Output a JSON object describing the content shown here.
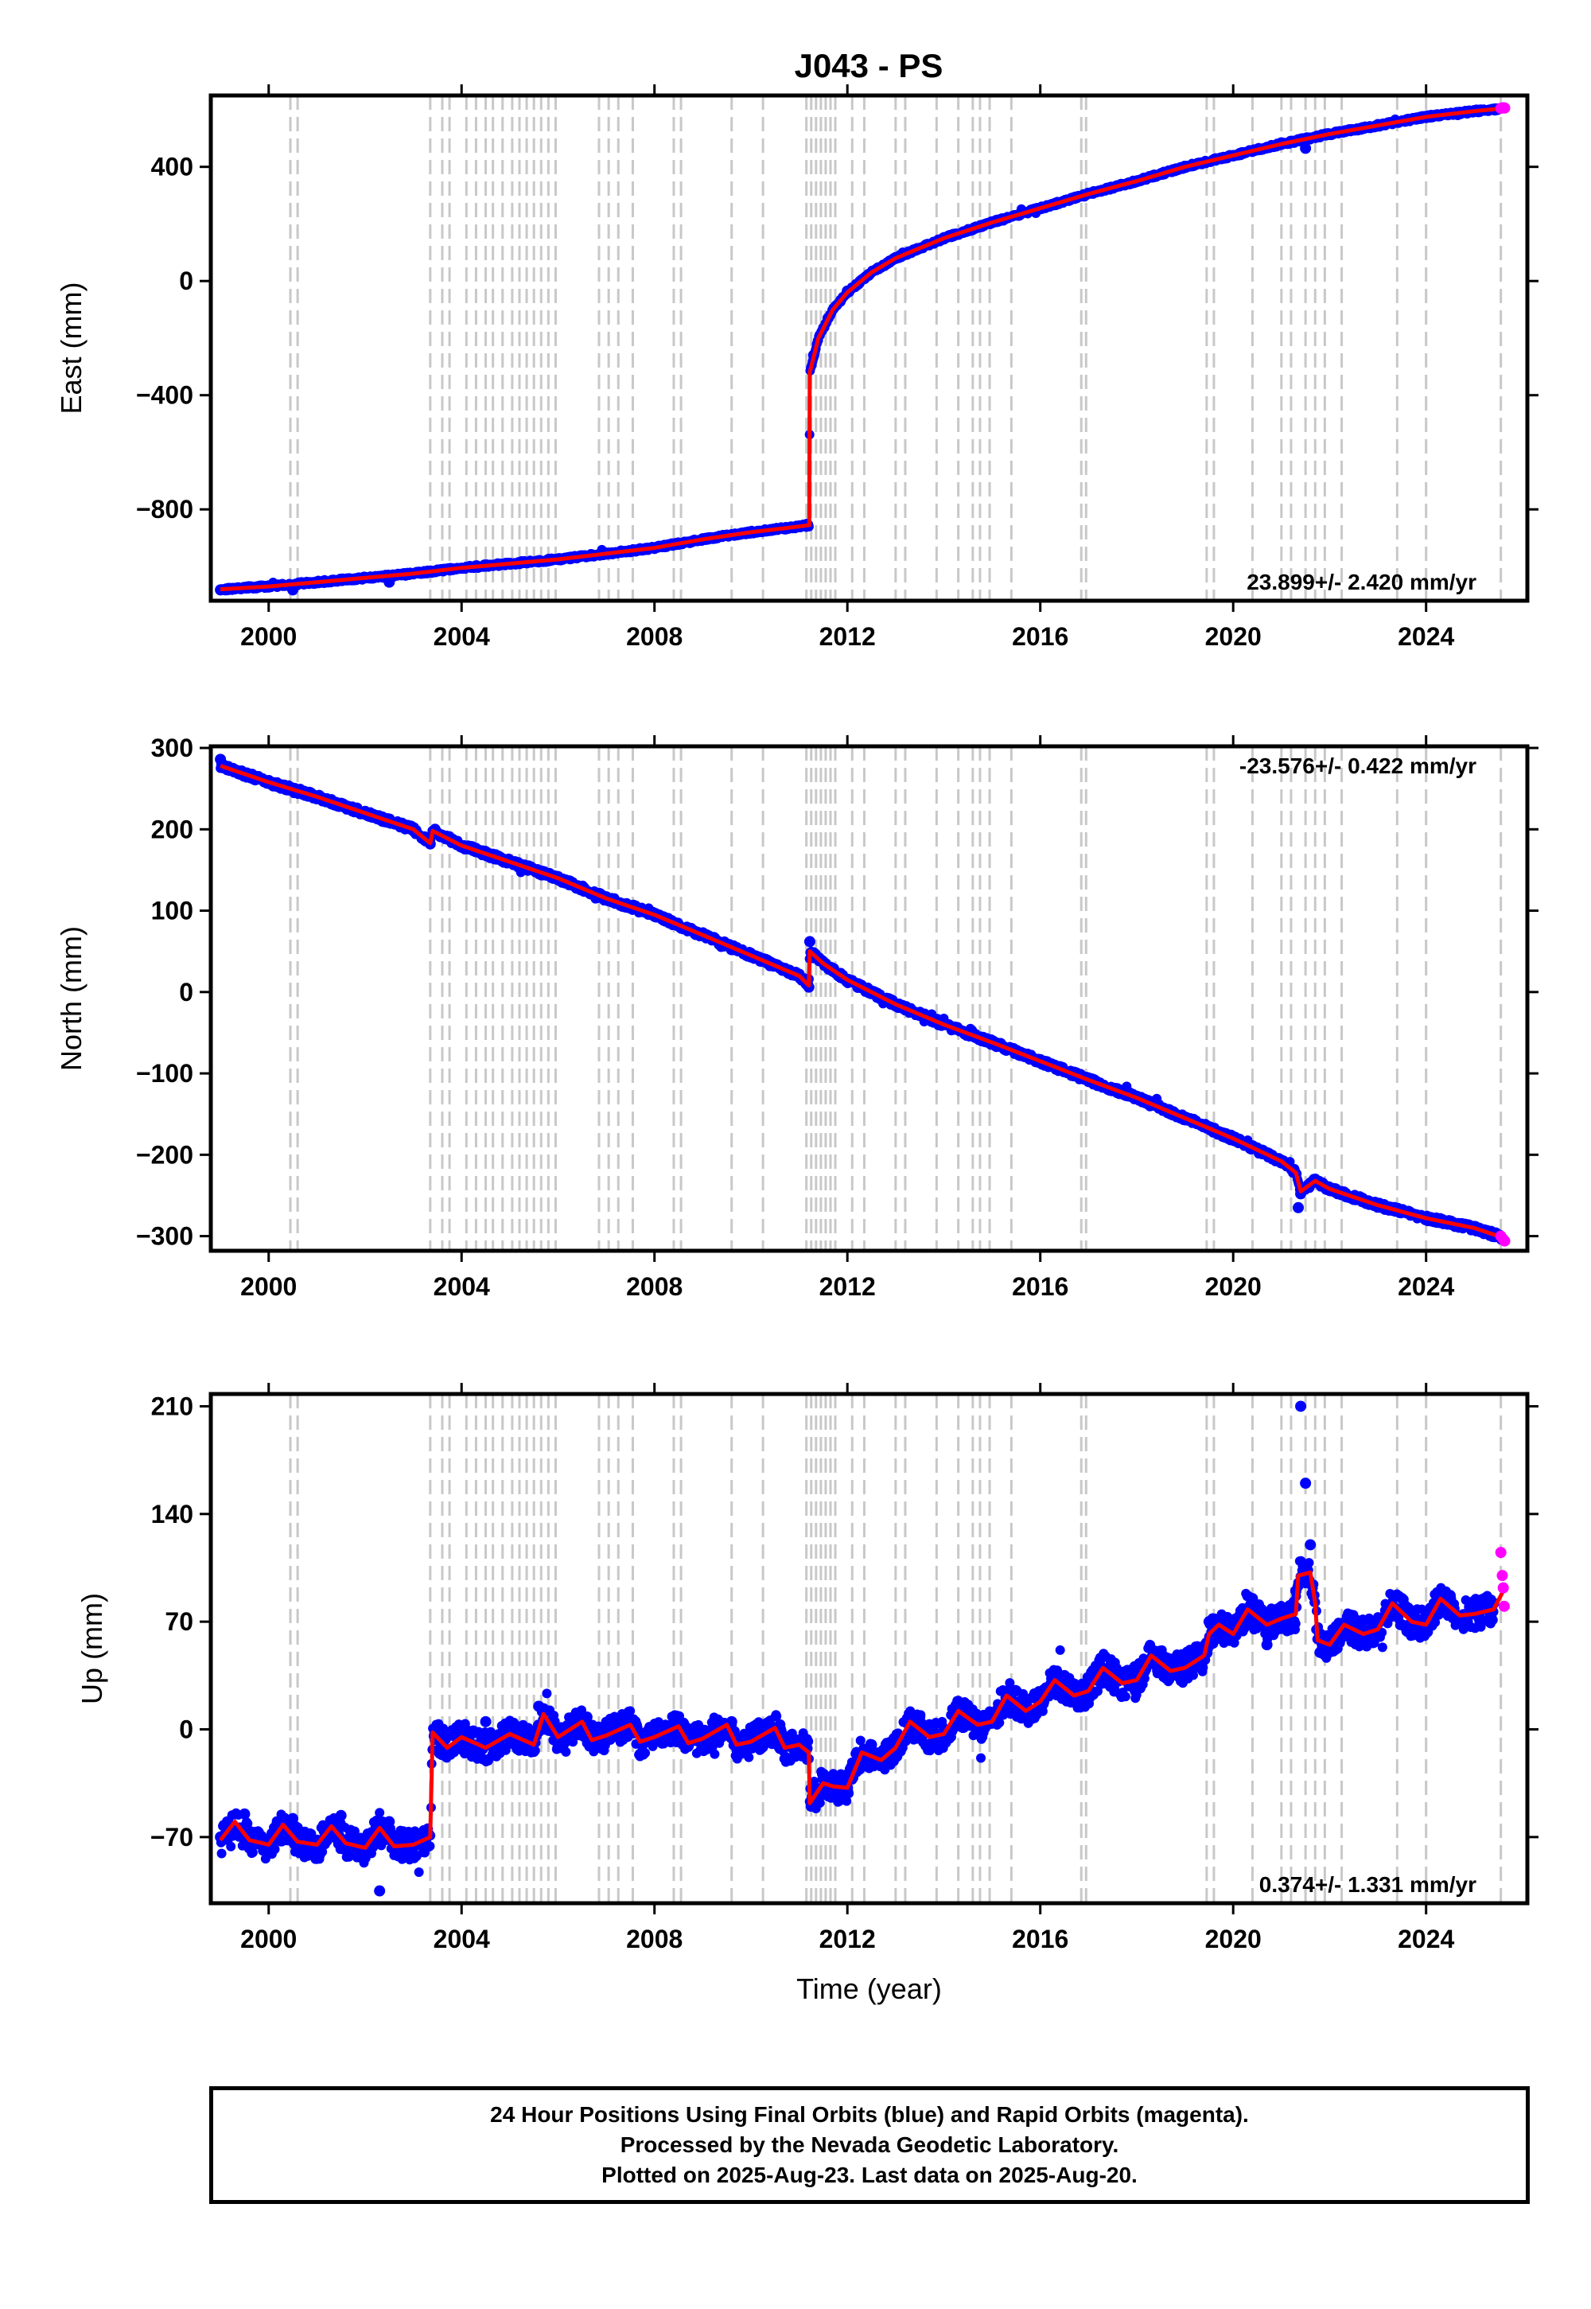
{
  "title": "J043 - PS",
  "colors": {
    "final_orbits": "#0000ff",
    "rapid_orbits": "#ff00ff",
    "model": "#ff0000",
    "event_lines": "#c8c8c8",
    "frame": "#000000"
  },
  "chart_data": [
    {
      "type": "scatter",
      "panel": "east",
      "ylabel": "East (mm)",
      "xlim": [
        1998.8,
        2026.1
      ],
      "ylim": [
        -1120,
        650
      ],
      "xticks": [
        2000,
        2004,
        2008,
        2012,
        2016,
        2020,
        2024
      ],
      "yticks": [
        -800,
        -400,
        0,
        400
      ],
      "rate_label": "23.899+/- 2.420 mm/yr",
      "rate_position": "bottom-right",
      "model_line": {
        "x": [
          1999.0,
          2000.0,
          2001.0,
          2002.0,
          2003.0,
          2004.0,
          2005.0,
          2006.0,
          2007.0,
          2008.0,
          2009.0,
          2010.0,
          2011.0,
          2011.21,
          2011.22,
          2011.4,
          2011.7,
          2012.0,
          2012.5,
          2013.0,
          2014.0,
          2015.0,
          2016.0,
          2017.0,
          2018.0,
          2019.0,
          2020.0,
          2021.0,
          2022.0,
          2023.0,
          2024.0,
          2025.0,
          2025.6
        ],
        "y": [
          -1080,
          -1070,
          -1055,
          -1040,
          -1025,
          -1005,
          -990,
          -975,
          -955,
          -935,
          -905,
          -880,
          -860,
          -855,
          -320,
          -200,
          -100,
          -40,
          30,
          80,
          150,
          205,
          255,
          305,
          350,
          400,
          440,
          480,
          515,
          545,
          575,
          595,
          605
        ]
      },
      "final_orbits": {
        "x": [
          1999.0,
          2000.0,
          2000.5,
          2001.0,
          2002.0,
          2002.5,
          2003.0,
          2004.0,
          2005.0,
          2006.0,
          2007.0,
          2008.0,
          2009.0,
          2010.0,
          2011.0,
          2011.3,
          2011.6,
          2012.0,
          2013.0,
          2014.0,
          2015.0,
          2016.0,
          2017.0,
          2018.0,
          2019.0,
          2020.0,
          2021.0,
          2021.5,
          2022.0,
          2023.0,
          2024.0,
          2025.0,
          2025.5
        ],
        "y": [
          -1082,
          -1068,
          -1082,
          -1057,
          -1038,
          -1055,
          -1026,
          -1006,
          -989,
          -976,
          -953,
          -937,
          -903,
          -882,
          -858,
          -260,
          -130,
          -35,
          82,
          148,
          207,
          253,
          307,
          348,
          402,
          438,
          484,
          465,
          513,
          547,
          573,
          597,
          603
        ]
      },
      "rapid_orbits": {
        "x": [
          2025.55,
          2025.6,
          2025.63
        ],
        "y": [
          605,
          607,
          606
        ]
      }
    },
    {
      "type": "scatter",
      "panel": "north",
      "ylabel": "North (mm)",
      "xlim": [
        1998.8,
        2026.1
      ],
      "ylim": [
        -318,
        302
      ],
      "xticks": [
        2000,
        2004,
        2008,
        2012,
        2016,
        2020,
        2024
      ],
      "yticks": [
        -300,
        -200,
        -100,
        0,
        100,
        200,
        300
      ],
      "rate_label": "-23.576+/- 0.422 mm/yr",
      "rate_position": "top-right",
      "model_line": {
        "x": [
          1999.0,
          2000.0,
          2001.0,
          2002.0,
          2003.0,
          2003.35,
          2003.4,
          2004.0,
          2005.0,
          2006.0,
          2007.0,
          2008.0,
          2009.0,
          2010.0,
          2011.0,
          2011.2,
          2011.22,
          2011.5,
          2012.0,
          2013.0,
          2014.0,
          2015.0,
          2016.0,
          2017.0,
          2018.0,
          2019.0,
          2020.0,
          2021.0,
          2021.3,
          2021.4,
          2021.7,
          2022.0,
          2023.0,
          2024.0,
          2025.0,
          2025.6
        ],
        "y": [
          278,
          258,
          240,
          220,
          200,
          183,
          198,
          180,
          160,
          140,
          115,
          95,
          70,
          45,
          20,
          8,
          50,
          35,
          15,
          -15,
          -40,
          -62,
          -85,
          -108,
          -130,
          -155,
          -180,
          -208,
          -222,
          -245,
          -232,
          -242,
          -262,
          -278,
          -290,
          -302
        ]
      },
      "final_orbits": {
        "x": [
          1999.0,
          2000.0,
          2001.0,
          2002.0,
          2003.0,
          2003.35,
          2003.45,
          2004.0,
          2005.0,
          2006.0,
          2007.0,
          2008.0,
          2009.0,
          2010.0,
          2011.0,
          2011.2,
          2011.22,
          2011.5,
          2012.0,
          2013.0,
          2014.0,
          2015.0,
          2016.0,
          2017.0,
          2018.0,
          2019.0,
          2020.0,
          2021.0,
          2021.35,
          2021.4,
          2021.7,
          2022.0,
          2023.0,
          2024.0,
          2025.0,
          2025.6
        ],
        "y": [
          286,
          260,
          238,
          222,
          198,
          182,
          200,
          178,
          162,
          138,
          117,
          93,
          72,
          43,
          22,
          6,
          62,
          37,
          13,
          -17,
          -38,
          -64,
          -83,
          -110,
          -128,
          -157,
          -178,
          -210,
          -265,
          -248,
          -230,
          -244,
          -260,
          -280,
          -288,
          -304
        ]
      },
      "rapid_orbits": {
        "x": [
          2025.55,
          2025.6,
          2025.63
        ],
        "y": [
          -300,
          -304,
          -306
        ]
      }
    },
    {
      "type": "scatter",
      "panel": "up",
      "ylabel": "Up (mm)",
      "xlabel": "Time (year)",
      "xlim": [
        1998.8,
        2026.1
      ],
      "ylim": [
        -113,
        218
      ],
      "xticks": [
        2000,
        2004,
        2008,
        2012,
        2016,
        2020,
        2024
      ],
      "yticks": [
        -70,
        0,
        70,
        140,
        210
      ],
      "rate_label": "0.374+/- 1.331 mm/yr",
      "rate_position": "bottom-right",
      "model_line": {
        "x": [
          1999.0,
          1999.3,
          1999.6,
          2000.0,
          2000.3,
          2000.6,
          2001.0,
          2001.3,
          2001.6,
          2002.0,
          2002.3,
          2002.6,
          2003.0,
          2003.35,
          2003.4,
          2003.7,
          2004.0,
          2004.5,
          2005.0,
          2005.5,
          2005.7,
          2006.0,
          2006.5,
          2006.7,
          2007.0,
          2007.5,
          2007.7,
          2008.0,
          2008.5,
          2008.7,
          2009.0,
          2009.5,
          2009.7,
          2010.0,
          2010.5,
          2010.7,
          2011.0,
          2011.2,
          2011.22,
          2011.5,
          2011.7,
          2012.0,
          2012.3,
          2012.7,
          2013.0,
          2013.3,
          2013.7,
          2014.0,
          2014.3,
          2014.7,
          2015.0,
          2015.3,
          2015.7,
          2016.0,
          2016.3,
          2016.7,
          2017.0,
          2017.3,
          2017.7,
          2018.0,
          2018.3,
          2018.7,
          2019.0,
          2019.4,
          2019.5,
          2019.7,
          2020.0,
          2020.3,
          2020.7,
          2021.0,
          2021.3,
          2021.35,
          2021.6,
          2021.7,
          2021.75,
          2022.0,
          2022.3,
          2022.7,
          2023.0,
          2023.3,
          2023.7,
          2024.0,
          2024.3,
          2024.7,
          2025.0,
          2025.4,
          2025.6
        ],
        "y": [
          -72,
          -60,
          -72,
          -75,
          -62,
          -73,
          -75,
          -63,
          -74,
          -77,
          -64,
          -76,
          -75,
          -70,
          -2,
          -12,
          -5,
          -12,
          -3,
          -10,
          10,
          -5,
          5,
          -7,
          -4,
          3,
          -8,
          -5,
          2,
          -9,
          -6,
          3,
          -10,
          -8,
          1,
          -12,
          -10,
          -15,
          -48,
          -35,
          -37,
          -38,
          -15,
          -20,
          -12,
          5,
          -5,
          -3,
          12,
          3,
          5,
          22,
          12,
          18,
          32,
          22,
          25,
          40,
          30,
          32,
          48,
          38,
          40,
          48,
          62,
          68,
          62,
          78,
          68,
          72,
          75,
          100,
          102,
          82,
          58,
          55,
          68,
          62,
          65,
          82,
          70,
          68,
          85,
          74,
          75,
          78,
          90
        ]
      },
      "final_orbits": {
        "x": [
          1999.0,
          1999.5,
          2000.0,
          2000.5,
          2001.0,
          2001.5,
          2002.0,
          2002.3,
          2002.5,
          2003.0,
          2003.3,
          2003.45,
          2004.0,
          2004.5,
          2005.0,
          2005.6,
          2006.0,
          2006.6,
          2007.0,
          2007.6,
          2008.0,
          2008.6,
          2009.0,
          2009.6,
          2010.0,
          2010.6,
          2011.0,
          2011.25,
          2011.5,
          2012.0,
          2012.5,
          2013.0,
          2013.5,
          2014.0,
          2014.5,
          2015.0,
          2015.5,
          2016.0,
          2016.5,
          2017.0,
          2017.5,
          2018.0,
          2018.5,
          2019.0,
          2019.5,
          2020.0,
          2020.4,
          2020.7,
          2021.0,
          2021.3,
          2021.4,
          2021.5,
          2021.6,
          2021.8,
          2022.0,
          2022.5,
          2023.0,
          2023.5,
          2024.0,
          2024.5,
          2025.0,
          2025.4
        ],
        "y": [
          -70,
          -55,
          -78,
          -58,
          -72,
          -56,
          -80,
          -105,
          -60,
          -72,
          -68,
          -5,
          -8,
          5,
          -2,
          15,
          -4,
          8,
          -3,
          5,
          -6,
          4,
          -7,
          5,
          -9,
          3,
          -11,
          -50,
          -30,
          -38,
          -10,
          -15,
          8,
          -4,
          15,
          4,
          25,
          15,
          35,
          22,
          42,
          30,
          50,
          38,
          70,
          60,
          85,
          55,
          72,
          90,
          210,
          160,
          120,
          50,
          52,
          70,
          62,
          85,
          68,
          87,
          75,
          82
        ]
      },
      "rapid_orbits": {
        "x": [
          2025.55,
          2025.58,
          2025.6,
          2025.62
        ],
        "y": [
          115,
          100,
          92,
          80
        ]
      }
    }
  ],
  "event_lines_years": [
    2000.45,
    2000.6,
    2003.35,
    2003.6,
    2003.75,
    2004.1,
    2004.3,
    2004.5,
    2004.65,
    2004.85,
    2005.05,
    2005.2,
    2005.35,
    2005.5,
    2005.65,
    2005.8,
    2005.95,
    2006.85,
    2007.05,
    2007.25,
    2007.55,
    2008.4,
    2008.55,
    2009.6,
    2010.25,
    2011.15,
    2011.25,
    2011.35,
    2011.45,
    2011.55,
    2011.65,
    2011.75,
    2012.1,
    2012.35,
    2013.0,
    2013.2,
    2013.85,
    2014.3,
    2014.6,
    2014.75,
    2014.95,
    2015.4,
    2016.85,
    2016.95,
    2019.45,
    2019.6,
    2020.4,
    2021.0,
    2021.2,
    2021.5,
    2021.7,
    2021.9,
    2022.25,
    2023.4,
    2024.0,
    2025.55
  ],
  "footer": {
    "line1": "24 Hour Positions Using Final Orbits (blue) and Rapid Orbits (magenta).",
    "line2": "Processed by the Nevada Geodetic Laboratory.",
    "line3": "Plotted on 2025-Aug-23. Last data on 2025-Aug-20."
  }
}
